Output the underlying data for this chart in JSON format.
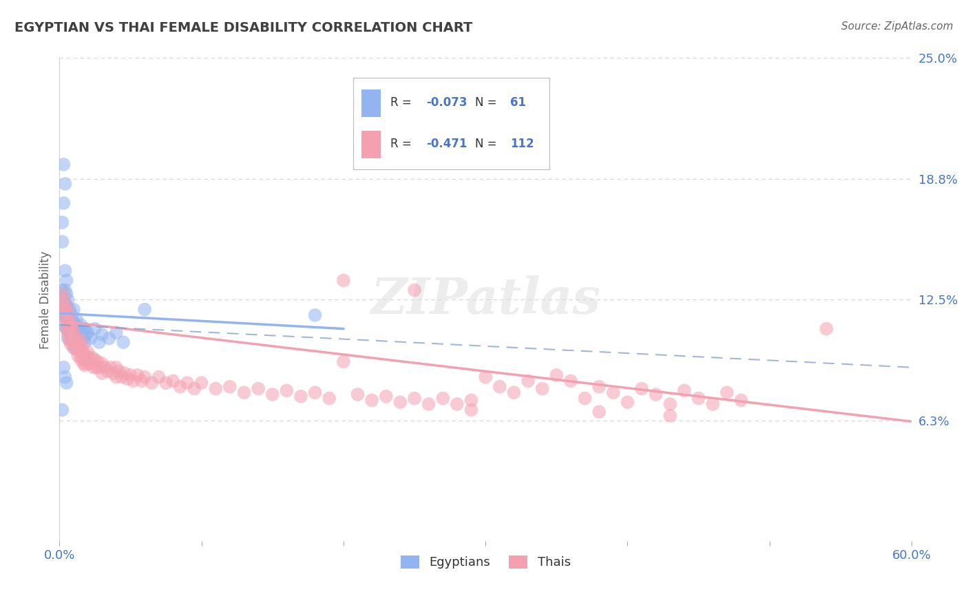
{
  "title": "EGYPTIAN VS THAI FEMALE DISABILITY CORRELATION CHART",
  "source": "Source: ZipAtlas.com",
  "ylabel": "Female Disability",
  "xlim": [
    0.0,
    0.6
  ],
  "ylim": [
    0.0,
    0.25
  ],
  "yticks": [
    0.0,
    0.0625,
    0.125,
    0.1875,
    0.25
  ],
  "ytick_labels": [
    "",
    "6.3%",
    "12.5%",
    "18.8%",
    "25.0%"
  ],
  "xticks": [
    0.0,
    0.1,
    0.2,
    0.3,
    0.4,
    0.5,
    0.6
  ],
  "xtick_labels": [
    "0.0%",
    "",
    "",
    "",
    "",
    "",
    "60.0%"
  ],
  "egyptian_color": "#92B4F0",
  "thai_color": "#F4A0B0",
  "background_color": "#ffffff",
  "grid_color": "#cccccc",
  "title_color": "#404040",
  "source_color": "#666666",
  "axis_label_color": "#666666",
  "tick_color": "#4477cc",
  "legend_val_color": "#4477cc",
  "legend_label_color": "#333333",
  "egyptian_scatter": [
    [
      0.002,
      0.13
    ],
    [
      0.003,
      0.125
    ],
    [
      0.003,
      0.118
    ],
    [
      0.003,
      0.112
    ],
    [
      0.004,
      0.14
    ],
    [
      0.004,
      0.13
    ],
    [
      0.004,
      0.123
    ],
    [
      0.004,
      0.116
    ],
    [
      0.005,
      0.135
    ],
    [
      0.005,
      0.128
    ],
    [
      0.005,
      0.122
    ],
    [
      0.005,
      0.115
    ],
    [
      0.005,
      0.11
    ],
    [
      0.006,
      0.125
    ],
    [
      0.006,
      0.118
    ],
    [
      0.006,
      0.112
    ],
    [
      0.006,
      0.105
    ],
    [
      0.007,
      0.12
    ],
    [
      0.007,
      0.113
    ],
    [
      0.007,
      0.108
    ],
    [
      0.008,
      0.118
    ],
    [
      0.008,
      0.111
    ],
    [
      0.008,
      0.105
    ],
    [
      0.009,
      0.115
    ],
    [
      0.009,
      0.108
    ],
    [
      0.01,
      0.12
    ],
    [
      0.01,
      0.113
    ],
    [
      0.01,
      0.107
    ],
    [
      0.01,
      0.1
    ],
    [
      0.011,
      0.112
    ],
    [
      0.011,
      0.105
    ],
    [
      0.012,
      0.115
    ],
    [
      0.012,
      0.108
    ],
    [
      0.013,
      0.11
    ],
    [
      0.013,
      0.103
    ],
    [
      0.014,
      0.108
    ],
    [
      0.015,
      0.112
    ],
    [
      0.015,
      0.105
    ],
    [
      0.016,
      0.108
    ],
    [
      0.017,
      0.105
    ],
    [
      0.018,
      0.11
    ],
    [
      0.018,
      0.103
    ],
    [
      0.019,
      0.107
    ],
    [
      0.02,
      0.108
    ],
    [
      0.022,
      0.105
    ],
    [
      0.025,
      0.11
    ],
    [
      0.028,
      0.103
    ],
    [
      0.03,
      0.107
    ],
    [
      0.035,
      0.105
    ],
    [
      0.04,
      0.108
    ],
    [
      0.045,
      0.103
    ],
    [
      0.002,
      0.155
    ],
    [
      0.002,
      0.165
    ],
    [
      0.003,
      0.175
    ],
    [
      0.004,
      0.185
    ],
    [
      0.003,
      0.195
    ],
    [
      0.06,
      0.12
    ],
    [
      0.003,
      0.09
    ],
    [
      0.004,
      0.085
    ],
    [
      0.005,
      0.082
    ],
    [
      0.18,
      0.117
    ],
    [
      0.002,
      0.068
    ]
  ],
  "thai_scatter": [
    [
      0.002,
      0.128
    ],
    [
      0.003,
      0.125
    ],
    [
      0.003,
      0.12
    ],
    [
      0.004,
      0.122
    ],
    [
      0.004,
      0.118
    ],
    [
      0.005,
      0.12
    ],
    [
      0.005,
      0.115
    ],
    [
      0.005,
      0.11
    ],
    [
      0.006,
      0.118
    ],
    [
      0.006,
      0.112
    ],
    [
      0.006,
      0.107
    ],
    [
      0.007,
      0.115
    ],
    [
      0.007,
      0.11
    ],
    [
      0.007,
      0.104
    ],
    [
      0.008,
      0.112
    ],
    [
      0.008,
      0.107
    ],
    [
      0.008,
      0.102
    ],
    [
      0.009,
      0.11
    ],
    [
      0.009,
      0.104
    ],
    [
      0.01,
      0.108
    ],
    [
      0.01,
      0.102
    ],
    [
      0.011,
      0.106
    ],
    [
      0.011,
      0.1
    ],
    [
      0.012,
      0.104
    ],
    [
      0.012,
      0.099
    ],
    [
      0.013,
      0.102
    ],
    [
      0.013,
      0.096
    ],
    [
      0.014,
      0.1
    ],
    [
      0.015,
      0.104
    ],
    [
      0.015,
      0.098
    ],
    [
      0.015,
      0.094
    ],
    [
      0.016,
      0.101
    ],
    [
      0.016,
      0.095
    ],
    [
      0.017,
      0.098
    ],
    [
      0.017,
      0.092
    ],
    [
      0.018,
      0.096
    ],
    [
      0.018,
      0.091
    ],
    [
      0.019,
      0.094
    ],
    [
      0.02,
      0.098
    ],
    [
      0.02,
      0.092
    ],
    [
      0.021,
      0.095
    ],
    [
      0.022,
      0.092
    ],
    [
      0.023,
      0.095
    ],
    [
      0.024,
      0.09
    ],
    [
      0.025,
      0.094
    ],
    [
      0.026,
      0.09
    ],
    [
      0.027,
      0.093
    ],
    [
      0.028,
      0.09
    ],
    [
      0.03,
      0.092
    ],
    [
      0.03,
      0.087
    ],
    [
      0.032,
      0.09
    ],
    [
      0.034,
      0.088
    ],
    [
      0.036,
      0.09
    ],
    [
      0.038,
      0.087
    ],
    [
      0.04,
      0.09
    ],
    [
      0.04,
      0.085
    ],
    [
      0.042,
      0.088
    ],
    [
      0.044,
      0.085
    ],
    [
      0.046,
      0.087
    ],
    [
      0.048,
      0.084
    ],
    [
      0.05,
      0.086
    ],
    [
      0.052,
      0.083
    ],
    [
      0.055,
      0.086
    ],
    [
      0.058,
      0.083
    ],
    [
      0.06,
      0.085
    ],
    [
      0.065,
      0.082
    ],
    [
      0.07,
      0.085
    ],
    [
      0.075,
      0.082
    ],
    [
      0.08,
      0.083
    ],
    [
      0.085,
      0.08
    ],
    [
      0.09,
      0.082
    ],
    [
      0.095,
      0.079
    ],
    [
      0.1,
      0.082
    ],
    [
      0.11,
      0.079
    ],
    [
      0.12,
      0.08
    ],
    [
      0.13,
      0.077
    ],
    [
      0.14,
      0.079
    ],
    [
      0.15,
      0.076
    ],
    [
      0.16,
      0.078
    ],
    [
      0.17,
      0.075
    ],
    [
      0.18,
      0.077
    ],
    [
      0.19,
      0.074
    ],
    [
      0.2,
      0.093
    ],
    [
      0.21,
      0.076
    ],
    [
      0.22,
      0.073
    ],
    [
      0.23,
      0.075
    ],
    [
      0.24,
      0.072
    ],
    [
      0.25,
      0.074
    ],
    [
      0.26,
      0.071
    ],
    [
      0.27,
      0.074
    ],
    [
      0.28,
      0.071
    ],
    [
      0.29,
      0.073
    ],
    [
      0.3,
      0.085
    ],
    [
      0.31,
      0.08
    ],
    [
      0.32,
      0.077
    ],
    [
      0.33,
      0.083
    ],
    [
      0.34,
      0.079
    ],
    [
      0.35,
      0.086
    ],
    [
      0.36,
      0.083
    ],
    [
      0.37,
      0.074
    ],
    [
      0.38,
      0.08
    ],
    [
      0.39,
      0.077
    ],
    [
      0.4,
      0.072
    ],
    [
      0.41,
      0.079
    ],
    [
      0.42,
      0.076
    ],
    [
      0.43,
      0.071
    ],
    [
      0.44,
      0.078
    ],
    [
      0.45,
      0.074
    ],
    [
      0.46,
      0.071
    ],
    [
      0.47,
      0.077
    ],
    [
      0.48,
      0.073
    ],
    [
      0.29,
      0.068
    ],
    [
      0.38,
      0.067
    ],
    [
      0.25,
      0.13
    ],
    [
      0.2,
      0.135
    ],
    [
      0.43,
      0.065
    ],
    [
      0.54,
      0.11
    ]
  ],
  "eg_trend_x": [
    0.0,
    0.2
  ],
  "eg_trend_y": [
    0.118,
    0.11
  ],
  "th_trend_x": [
    0.0,
    0.6
  ],
  "th_trend_y": [
    0.114,
    0.062
  ],
  "dash_trend_x": [
    0.0,
    0.6
  ],
  "dash_trend_y": [
    0.112,
    0.09
  ]
}
